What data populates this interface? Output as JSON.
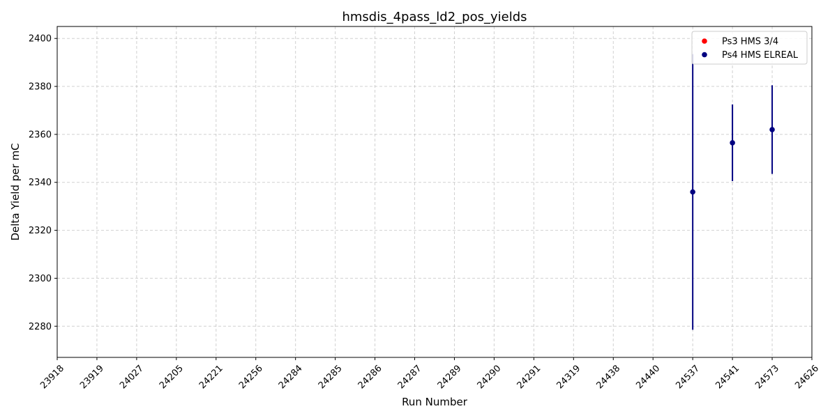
{
  "chart_data": {
    "type": "scatter",
    "title": "hmsdis_4pass_ld2_pos_yields",
    "xlabel": "Run Number",
    "ylabel": "Delta Yield per mC",
    "categories": [
      "23918",
      "23919",
      "24027",
      "24205",
      "24221",
      "24256",
      "24284",
      "24285",
      "24286",
      "24287",
      "24289",
      "24290",
      "24291",
      "24319",
      "24438",
      "24440",
      "24537",
      "24541",
      "24573",
      "24626"
    ],
    "ylim": [
      2267,
      2405
    ],
    "yticks": [
      2280,
      2300,
      2320,
      2340,
      2360,
      2380,
      2400
    ],
    "grid": true,
    "legend_position": "top-right",
    "series": [
      {
        "name": "Ps3 HMS 3/4",
        "color": "#ff0000",
        "points": []
      },
      {
        "name": "Ps4 HMS ELREAL",
        "color": "#000080",
        "points": [
          {
            "x": "24537",
            "y": 2336,
            "yerr": 57.5
          },
          {
            "x": "24541",
            "y": 2356.5,
            "yerr": 16
          },
          {
            "x": "24573",
            "y": 2362,
            "yerr": 18.5
          }
        ]
      }
    ]
  }
}
